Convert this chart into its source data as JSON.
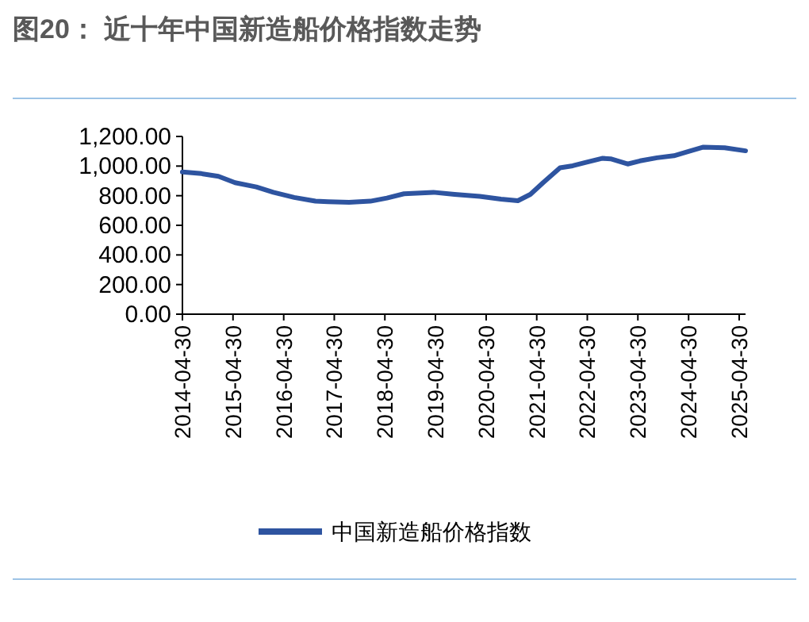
{
  "chart_data": {
    "type": "line",
    "title": "图20：  近十年中国新造船价格指数走势",
    "x": [
      "2014-04-30",
      "2014-09",
      "2015-01",
      "2015-05",
      "2015-10",
      "2016-02",
      "2016-07",
      "2016-12",
      "2017-03",
      "2017-08",
      "2018-01",
      "2018-05",
      "2018-09",
      "2019-04",
      "2019-09",
      "2020-03",
      "2020-08",
      "2020-12",
      "2021-03",
      "2021-06",
      "2021-10",
      "2022-01",
      "2022-04",
      "2022-08",
      "2022-10",
      "2023-02",
      "2023-05",
      "2023-09",
      "2024-01",
      "2024-04",
      "2024-08",
      "2025-01",
      "2025-06"
    ],
    "series": [
      {
        "name": "中国新造船价格指数",
        "color": "#2e54a0",
        "values": [
          960,
          949,
          931,
          888,
          859,
          823,
          788,
          763,
          759,
          755,
          763,
          784,
          813,
          823,
          809,
          795,
          777,
          766,
          809,
          888,
          988,
          1002,
          1024,
          1052,
          1049,
          1014,
          1035,
          1056,
          1070,
          1095,
          1128,
          1124,
          1103
        ]
      }
    ],
    "xlim": [
      "2014-04-30",
      "2025-06-15"
    ],
    "xticks": [
      "2014-04-30",
      "2015-04-30",
      "2016-04-30",
      "2017-04-30",
      "2018-04-30",
      "2019-04-30",
      "2020-04-30",
      "2021-04-30",
      "2022-04-30",
      "2023-04-30",
      "2024-04-30",
      "2025-04-30"
    ],
    "ylim": [
      0,
      1200
    ],
    "yticks": [
      {
        "value": 0,
        "label": "0.00"
      },
      {
        "value": 200,
        "label": "200.00"
      },
      {
        "value": 400,
        "label": "400.00"
      },
      {
        "value": 600,
        "label": "600.00"
      },
      {
        "value": 800,
        "label": "800.00"
      },
      {
        "value": 1000,
        "label": "1,000.00"
      },
      {
        "value": 1200,
        "label": "1,200.00"
      }
    ],
    "grid": false,
    "legend": "bottom",
    "marker": "none",
    "line_style": "solid"
  }
}
